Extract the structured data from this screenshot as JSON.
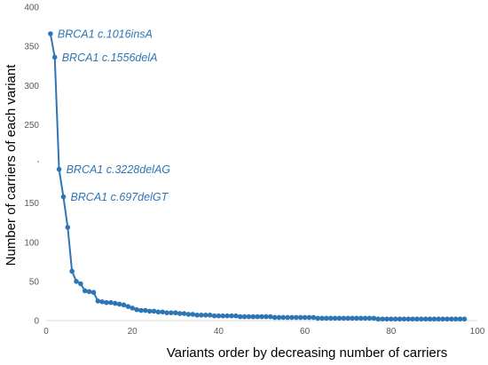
{
  "chart_data": {
    "type": "line",
    "xlabel": "Variants order by decreasing number of carriers",
    "ylabel": "Number of carriers of each variant",
    "xlim": [
      0,
      100
    ],
    "ylim": [
      0,
      400
    ],
    "x_ticks": [
      0,
      20,
      40,
      60,
      80,
      100
    ],
    "y_ticks": [
      0,
      50,
      100,
      150,
      200,
      250,
      300,
      350,
      400
    ],
    "y_tick_labels": [
      "0",
      "50",
      "100",
      "150",
      "'",
      "250",
      "300",
      "350",
      "400"
    ],
    "grid": "none",
    "legend": "none",
    "colors": {
      "series": "#2e75b6",
      "axis": "#d9d9d9",
      "tick_text": "#595959",
      "annotation": "#2e75b6"
    },
    "series": [
      {
        "x": [
          1,
          2,
          3,
          4,
          5,
          6,
          7,
          8,
          9,
          10,
          11,
          12,
          13,
          14,
          15,
          16,
          17,
          18,
          19,
          20,
          21,
          22,
          23,
          24,
          25,
          26,
          27,
          28,
          29,
          30,
          31,
          32,
          33,
          34,
          35,
          36,
          37,
          38,
          39,
          40,
          41,
          42,
          43,
          44,
          45,
          46,
          47,
          48,
          49,
          50,
          51,
          52,
          53,
          54,
          55,
          56,
          57,
          58,
          59,
          60,
          61,
          62,
          63,
          64,
          65,
          66,
          67,
          68,
          69,
          70,
          71,
          72,
          73,
          74,
          75,
          76,
          77,
          78,
          79,
          80,
          81,
          82,
          83,
          84,
          85,
          86,
          87,
          88,
          89,
          90,
          91,
          92,
          93,
          94,
          95,
          96,
          97
        ],
        "values": [
          366,
          336,
          193,
          158,
          119,
          63,
          50,
          47,
          38,
          37,
          36,
          25,
          24,
          23,
          23,
          22,
          21,
          20,
          18,
          16,
          14,
          13,
          13,
          12,
          12,
          11,
          11,
          10,
          10,
          10,
          9,
          9,
          8,
          8,
          7,
          7,
          7,
          7,
          6,
          6,
          6,
          6,
          6,
          6,
          5,
          5,
          5,
          5,
          5,
          5,
          5,
          5,
          4,
          4,
          4,
          4,
          4,
          4,
          4,
          4,
          4,
          4,
          3,
          3,
          3,
          3,
          3,
          3,
          3,
          3,
          3,
          3,
          3,
          3,
          3,
          3,
          2,
          2,
          2,
          2,
          2,
          2,
          2,
          2,
          2,
          2,
          2,
          2,
          2,
          2,
          2,
          2,
          2,
          2,
          2,
          2,
          2
        ]
      }
    ],
    "annotations": [
      {
        "text": "BRCA1 c.1016insA",
        "x": 1,
        "y": 366
      },
      {
        "text": "BRCA1 c.1556delA",
        "x": 2,
        "y": 336
      },
      {
        "text": "BRCA1 c.3228delAG",
        "x": 3,
        "y": 193
      },
      {
        "text": "BRCA1 c.697delGT",
        "x": 4,
        "y": 158
      }
    ]
  }
}
